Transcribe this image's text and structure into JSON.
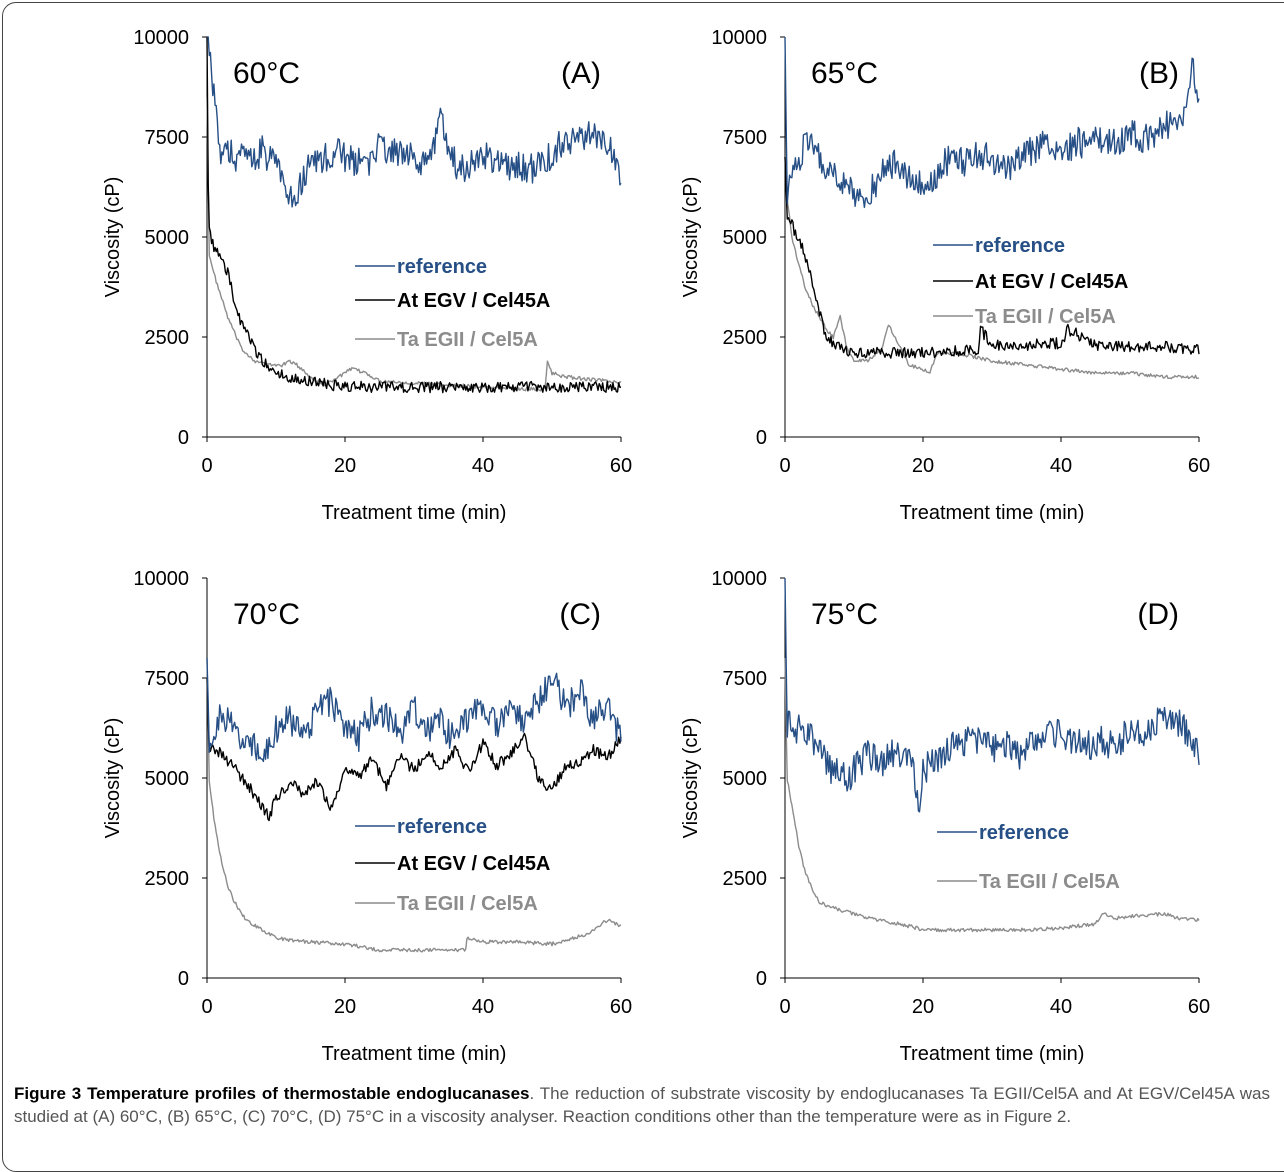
{
  "figure": {
    "caption_label": "Figure 3 Temperature profiles of thermostable endoglucanases",
    "caption_text": ". The reduction of substrate viscosity by endoglucanases Ta EGII/Cel5A and At EGV/Cel45A was studied at (A) 60°C, (B) 65°C, (C) 70°C, (D) 75°C in a viscosity analyser. Reaction conditions other than the temperature were as in Figure 2."
  },
  "colors": {
    "reference": "#264F86",
    "at_egv": "#000000",
    "ta_egii": "#8C8C8C"
  },
  "chart_data": [
    {
      "type": "line",
      "panel": "(A)",
      "temperature": "60°C",
      "xlabel": "Treatment time (min)",
      "ylabel": "Viscosity (cP)",
      "xlim": [
        0,
        60
      ],
      "ylim": [
        0,
        10000
      ],
      "xticks": [
        0,
        20,
        40,
        60
      ],
      "yticks": [
        0,
        2500,
        5000,
        7500,
        10000
      ],
      "legend": [
        "reference",
        "At EGV / Cel45A",
        "Ta EGII / Cel5A"
      ],
      "series": [
        {
          "name": "reference",
          "color": "#264F86",
          "x": [
            0,
            0.3,
            0.6,
            1,
            1.5,
            2,
            3,
            4,
            5,
            6,
            7,
            8,
            9,
            10,
            11,
            12,
            13,
            14,
            15,
            17,
            19,
            21,
            23,
            25,
            27,
            29,
            31,
            33,
            34,
            35,
            37,
            39,
            41,
            43,
            45,
            47,
            49,
            50,
            51,
            53,
            55,
            57,
            59,
            60
          ],
          "y": [
            10000,
            10000,
            9200,
            8600,
            7600,
            7000,
            7200,
            6900,
            7100,
            7000,
            6800,
            7300,
            6900,
            7000,
            6300,
            5900,
            6000,
            6500,
            6900,
            7000,
            7100,
            6900,
            6800,
            7300,
            7100,
            7000,
            6900,
            7200,
            8200,
            7000,
            6700,
            6900,
            7000,
            6700,
            6800,
            6700,
            6900,
            7100,
            7300,
            7400,
            7600,
            7500,
            7000,
            6500
          ]
        },
        {
          "name": "At EGV / Cel45A",
          "color": "#000000",
          "x": [
            0,
            0.2,
            0.5,
            1,
            2,
            3,
            4,
            5,
            6,
            8,
            10,
            12,
            15,
            18,
            21,
            25,
            30,
            35,
            40,
            45,
            50,
            55,
            60
          ],
          "y": [
            10000,
            5600,
            5100,
            4700,
            4500,
            4100,
            3400,
            2800,
            2500,
            1900,
            1600,
            1500,
            1400,
            1300,
            1250,
            1250,
            1250,
            1250,
            1250,
            1250,
            1250,
            1250,
            1250
          ]
        },
        {
          "name": "Ta EGII / Cel5A",
          "color": "#8C8C8C",
          "x": [
            0,
            0.3,
            0.8,
            1.5,
            3,
            5,
            7,
            9,
            11,
            12,
            13,
            15,
            17,
            19,
            21,
            23,
            25,
            30,
            35,
            40,
            45,
            49,
            49.3,
            50,
            52,
            55,
            58,
            60
          ],
          "y": [
            8500,
            4600,
            4200,
            3800,
            3000,
            2200,
            1900,
            1800,
            1800,
            1900,
            1800,
            1500,
            1300,
            1500,
            1700,
            1600,
            1400,
            1350,
            1300,
            1250,
            1200,
            1200,
            1900,
            1600,
            1500,
            1450,
            1400,
            1350
          ]
        }
      ]
    },
    {
      "type": "line",
      "panel": "(B)",
      "temperature": "65°C",
      "xlabel": "Treatment time (min)",
      "ylabel": "Viscosity (cP)",
      "xlim": [
        0,
        60
      ],
      "ylim": [
        0,
        10000
      ],
      "xticks": [
        0,
        20,
        40,
        60
      ],
      "yticks": [
        0,
        2500,
        5000,
        7500,
        10000
      ],
      "legend": [
        "reference",
        "At EGV / Cel45A",
        "Ta EGII / Cel5A"
      ],
      "series": [
        {
          "name": "reference",
          "color": "#264F86",
          "x": [
            0,
            0.3,
            1,
            2,
            3,
            4,
            6,
            8,
            10,
            12,
            14,
            16,
            18,
            20,
            22,
            24,
            26,
            28,
            30,
            32,
            34,
            36,
            38,
            40,
            42,
            44,
            46,
            48,
            50,
            52,
            54,
            56,
            58,
            59,
            60
          ],
          "y": [
            10000,
            6200,
            6500,
            7000,
            7300,
            7200,
            6800,
            6500,
            6000,
            6000,
            6600,
            6900,
            6400,
            6300,
            6600,
            7000,
            6900,
            7100,
            6900,
            6700,
            7000,
            7200,
            7300,
            6900,
            7400,
            7300,
            7500,
            7400,
            7600,
            7400,
            7700,
            7800,
            7900,
            9300,
            8200
          ]
        },
        {
          "name": "At EGV / Cel45A",
          "color": "#000000",
          "x": [
            0,
            0.3,
            1,
            2,
            3,
            4,
            5,
            6,
            8,
            10,
            12,
            15,
            20,
            25,
            28,
            28.3,
            30,
            35,
            40,
            41,
            43,
            45,
            50,
            55,
            60
          ],
          "y": [
            7000,
            5600,
            5300,
            4900,
            4500,
            3800,
            3100,
            2500,
            2200,
            2100,
            2100,
            2100,
            2100,
            2150,
            2200,
            2700,
            2300,
            2300,
            2350,
            2700,
            2500,
            2300,
            2250,
            2250,
            2200
          ]
        },
        {
          "name": "Ta EGII / Cel5A",
          "color": "#8C8C8C",
          "x": [
            0,
            0.3,
            1,
            2,
            3,
            4,
            5,
            6,
            7,
            8,
            9,
            10,
            12,
            14,
            15,
            16,
            18,
            20,
            21,
            22,
            25,
            30,
            35,
            40,
            45,
            50,
            55,
            60
          ],
          "y": [
            7000,
            6000,
            5000,
            4300,
            3700,
            3300,
            3000,
            2700,
            2500,
            3000,
            2200,
            1900,
            1900,
            2200,
            2800,
            2500,
            1800,
            1700,
            1600,
            2100,
            2100,
            1900,
            1800,
            1700,
            1600,
            1600,
            1500,
            1500
          ]
        }
      ]
    },
    {
      "type": "line",
      "panel": "(C)",
      "temperature": "70°C",
      "xlabel": "Treatment time (min)",
      "ylabel": "Viscosity (cP)",
      "xlim": [
        0,
        60
      ],
      "ylim": [
        0,
        10000
      ],
      "xticks": [
        0,
        20,
        40,
        60
      ],
      "yticks": [
        0,
        2500,
        5000,
        7500,
        10000
      ],
      "legend": [
        "reference",
        "At EGV / Cel45A",
        "Ta EGII / Cel5A"
      ],
      "series": [
        {
          "name": "reference",
          "color": "#264F86",
          "x": [
            0,
            0.3,
            1,
            2,
            3,
            4,
            5,
            6,
            8,
            10,
            12,
            14,
            16,
            18,
            20,
            22,
            24,
            26,
            28,
            30,
            32,
            34,
            36,
            38,
            40,
            42,
            44,
            46,
            48,
            50,
            52,
            54,
            56,
            58,
            60
          ],
          "y": [
            8000,
            6000,
            6300,
            6500,
            6400,
            6200,
            5800,
            6000,
            5600,
            6200,
            6500,
            6000,
            6700,
            6900,
            6200,
            6000,
            6700,
            6500,
            6100,
            6800,
            6200,
            6400,
            5900,
            6600,
            6800,
            6300,
            6700,
            6400,
            6900,
            7600,
            6700,
            7200,
            6500,
            6800,
            6000
          ]
        },
        {
          "name": "At EGV / Cel45A",
          "color": "#000000",
          "x": [
            0,
            0.3,
            1,
            2,
            3,
            4,
            5,
            6,
            8,
            9,
            10,
            12,
            14,
            16,
            18,
            20,
            22,
            24,
            26,
            28,
            30,
            32,
            34,
            36,
            38,
            40,
            42,
            44,
            46,
            48,
            50,
            52,
            54,
            56,
            58,
            60
          ],
          "y": [
            7500,
            5800,
            5700,
            5600,
            5400,
            5300,
            5000,
            4800,
            4300,
            4000,
            4500,
            4900,
            4600,
            4900,
            4200,
            5200,
            5000,
            5500,
            4800,
            5500,
            5200,
            5600,
            5300,
            5700,
            5100,
            5900,
            5300,
            5600,
            6000,
            5000,
            4700,
            5300,
            5400,
            5700,
            5500,
            6000
          ]
        },
        {
          "name": "Ta EGII / Cel5A",
          "color": "#8C8C8C",
          "x": [
            0,
            0.3,
            1,
            2,
            3,
            4,
            5,
            6,
            8,
            10,
            12,
            15,
            20,
            25,
            30,
            35,
            37.5,
            37.7,
            40,
            45,
            50,
            55,
            58,
            60
          ],
          "y": [
            8000,
            5000,
            4000,
            3000,
            2300,
            1900,
            1600,
            1400,
            1200,
            1000,
            950,
            900,
            850,
            700,
            700,
            700,
            700,
            1000,
            900,
            900,
            850,
            1100,
            1450,
            1300
          ]
        }
      ]
    },
    {
      "type": "line",
      "panel": "(D)",
      "temperature": "75°C",
      "xlabel": "Treatment time (min)",
      "ylabel": "Viscosity (cP)",
      "xlim": [
        0,
        60
      ],
      "ylim": [
        0,
        10000
      ],
      "xticks": [
        0,
        20,
        40,
        60
      ],
      "yticks": [
        0,
        2500,
        5000,
        7500,
        10000
      ],
      "legend": [
        "reference",
        "Ta EGII / Cel5A"
      ],
      "series": [
        {
          "name": "reference",
          "color": "#264F86",
          "x": [
            0,
            0.3,
            1,
            2,
            3,
            4,
            5,
            6,
            7,
            8,
            9,
            10,
            12,
            14,
            16,
            18,
            19.5,
            20,
            22,
            24,
            26,
            28,
            30,
            32,
            34,
            36,
            38,
            40,
            42,
            44,
            46,
            48,
            50,
            52,
            54,
            56,
            58,
            60
          ],
          "y": [
            10000,
            6400,
            6300,
            6200,
            6100,
            6000,
            5600,
            5400,
            5000,
            5300,
            4800,
            5200,
            5600,
            5300,
            5700,
            5500,
            4400,
            5200,
            5500,
            5800,
            5900,
            6000,
            5700,
            5900,
            5600,
            6000,
            6200,
            6100,
            5900,
            5800,
            6000,
            5700,
            6300,
            6100,
            6400,
            6500,
            6200,
            5600
          ]
        },
        {
          "name": "Ta EGII / Cel5A",
          "color": "#8C8C8C",
          "x": [
            0,
            0.3,
            1,
            2,
            3,
            4,
            5,
            6,
            8,
            10,
            12,
            15,
            18,
            20,
            25,
            30,
            35,
            40,
            45,
            46,
            48,
            50,
            55,
            57,
            60
          ],
          "y": [
            8000,
            5000,
            4300,
            3300,
            2600,
            2200,
            1900,
            1800,
            1700,
            1600,
            1500,
            1400,
            1300,
            1200,
            1200,
            1200,
            1200,
            1250,
            1350,
            1600,
            1500,
            1550,
            1600,
            1500,
            1450
          ]
        }
      ]
    }
  ]
}
